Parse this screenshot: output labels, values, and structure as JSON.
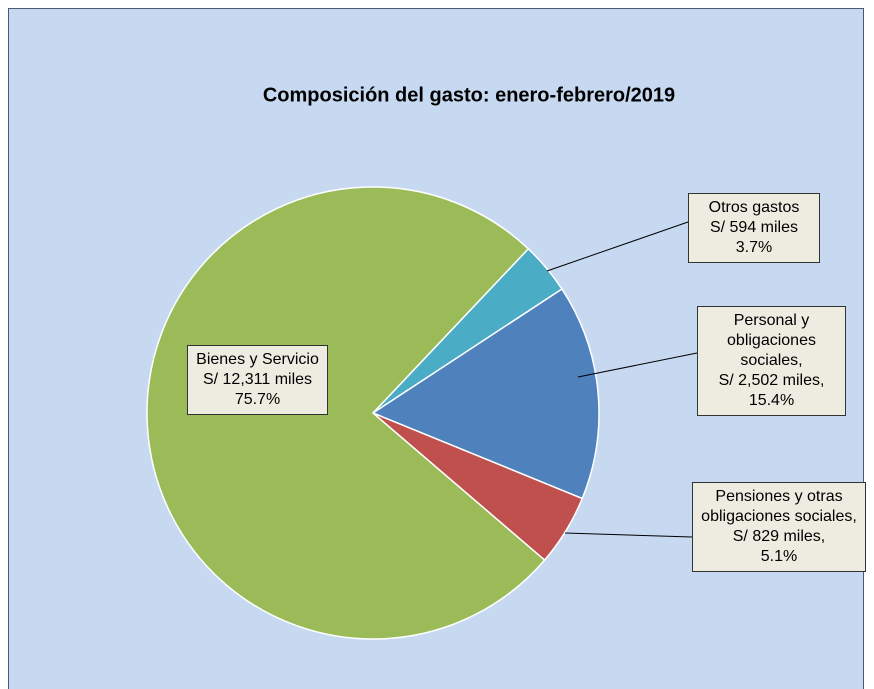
{
  "chart_data": {
    "type": "pie",
    "title": "Composición del gasto: enero-febrero/2019",
    "categories": [
      "Otros gastos",
      "Personal y obligaciones sociales,",
      "Pensiones y otras obligaciones sociales,",
      "Bienes y Servicio"
    ],
    "values": [
      3.7,
      15.4,
      5.1,
      75.7
    ],
    "value_labels": [
      "3.7%",
      "15.4%",
      "5.1%",
      "75.7%"
    ],
    "amount_labels": [
      "S/ 594 miles",
      "S/ 2,502 miles,",
      "S/ 829 miles,",
      "S/ 12,311 miles"
    ],
    "colors": [
      "#4bacc6",
      "#4f81bd",
      "#c0504d",
      "#9bbb59"
    ]
  }
}
